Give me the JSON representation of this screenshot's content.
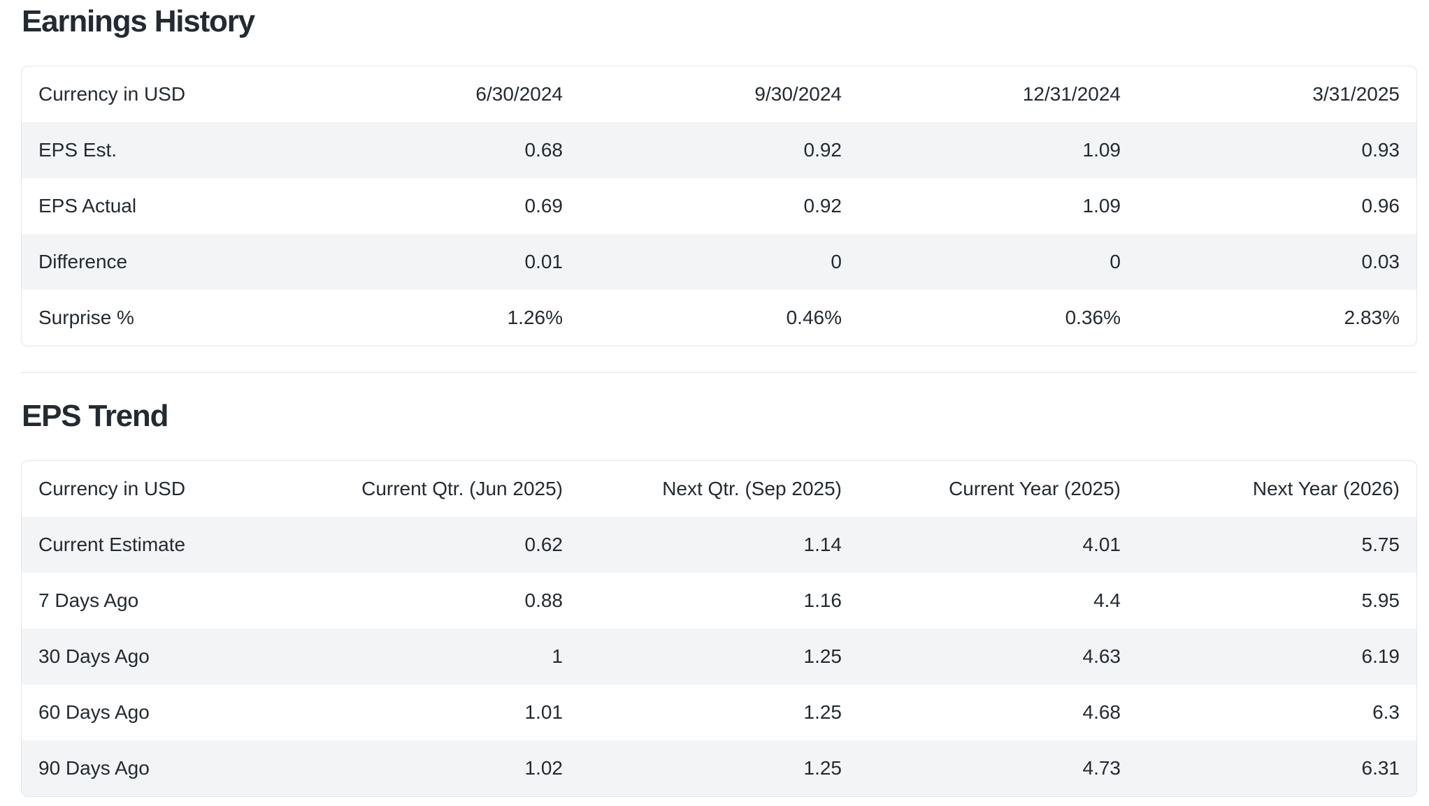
{
  "theme": {
    "background": "#ffffff",
    "text_color": "#232a31",
    "stripe_color": "#f3f4f6",
    "border_color": "#e2e5e9"
  },
  "sections": [
    {
      "title": "Earnings History",
      "table": {
        "columns": [
          "Currency in USD",
          "6/30/2024",
          "9/30/2024",
          "12/31/2024",
          "3/31/2025"
        ],
        "rows": [
          {
            "label": "EPS Est.",
            "values": [
              "0.68",
              "0.92",
              "1.09",
              "0.93"
            ]
          },
          {
            "label": "EPS Actual",
            "values": [
              "0.69",
              "0.92",
              "1.09",
              "0.96"
            ]
          },
          {
            "label": "Difference",
            "values": [
              "0.01",
              "0",
              "0",
              "0.03"
            ]
          },
          {
            "label": "Surprise %",
            "values": [
              "1.26%",
              "0.46%",
              "0.36%",
              "2.83%"
            ]
          }
        ]
      }
    },
    {
      "title": "EPS Trend",
      "table": {
        "columns": [
          "Currency in USD",
          "Current Qtr. (Jun 2025)",
          "Next Qtr. (Sep 2025)",
          "Current Year (2025)",
          "Next Year (2026)"
        ],
        "rows": [
          {
            "label": "Current Estimate",
            "values": [
              "0.62",
              "1.14",
              "4.01",
              "5.75"
            ]
          },
          {
            "label": "7 Days Ago",
            "values": [
              "0.88",
              "1.16",
              "4.4",
              "5.95"
            ]
          },
          {
            "label": "30 Days Ago",
            "values": [
              "1",
              "1.25",
              "4.63",
              "6.19"
            ]
          },
          {
            "label": "60 Days Ago",
            "values": [
              "1.01",
              "1.25",
              "4.68",
              "6.3"
            ]
          },
          {
            "label": "90 Days Ago",
            "values": [
              "1.02",
              "1.25",
              "4.73",
              "6.31"
            ]
          }
        ]
      }
    }
  ]
}
